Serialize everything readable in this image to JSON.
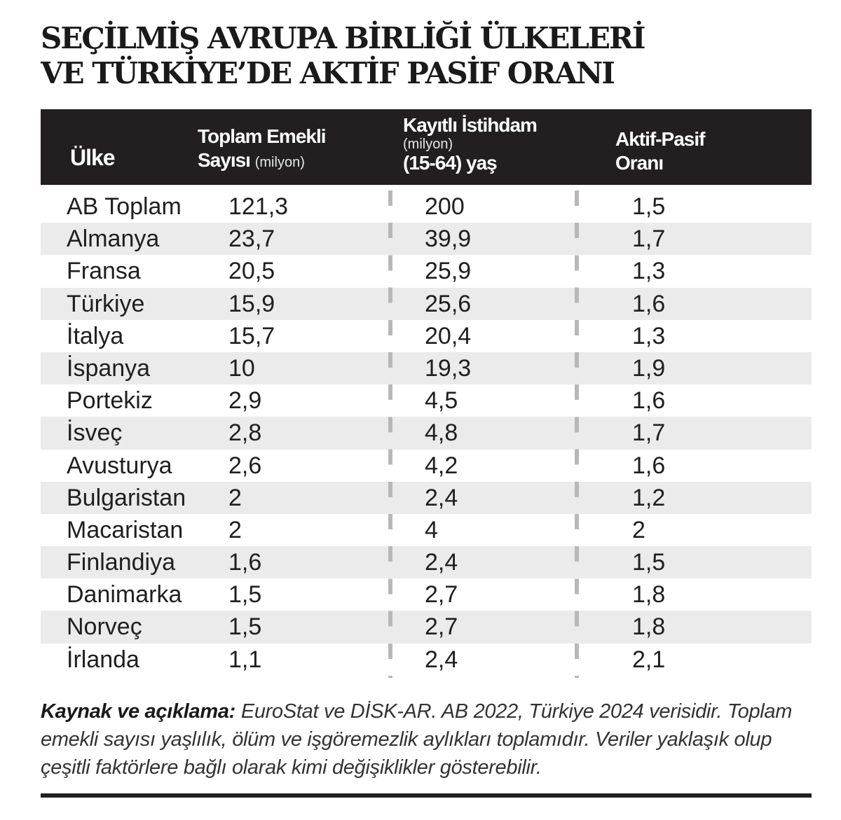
{
  "title": {
    "line1": "SEÇİLMİŞ AVRUPA BİRLİĞİ ÜLKELERİ",
    "line2": "VE TÜRKİYE’DE AKTİF PASİF ORANI"
  },
  "table": {
    "headers": {
      "country": "Ülke",
      "pension_line1": "Toplam Emekli",
      "pension_line2": "Sayısı",
      "pension_unit": "(milyon)",
      "employ_line1": "Kayıtlı İstihdam",
      "employ_unit": "(milyon)",
      "employ_line3": "(15-64) yaş",
      "ratio_line1": "Aktif-Pasif",
      "ratio_line2": "Oranı"
    },
    "rows": [
      {
        "country": "AB Toplam",
        "pension": "121,3",
        "employ": "200",
        "ratio": "1,5"
      },
      {
        "country": "Almanya",
        "pension": "23,7",
        "employ": "39,9",
        "ratio": "1,7"
      },
      {
        "country": "Fransa",
        "pension": "20,5",
        "employ": "25,9",
        "ratio": "1,3"
      },
      {
        "country": "Türkiye",
        "pension": "15,9",
        "employ": "25,6",
        "ratio": "1,6"
      },
      {
        "country": "İtalya",
        "pension": "15,7",
        "employ": "20,4",
        "ratio": "1,3"
      },
      {
        "country": "İspanya",
        "pension": "10",
        "employ": "19,3",
        "ratio": "1,9"
      },
      {
        "country": "Portekiz",
        "pension": "2,9",
        "employ": "4,5",
        "ratio": "1,6"
      },
      {
        "country": "İsveç",
        "pension": "2,8",
        "employ": "4,8",
        "ratio": "1,7"
      },
      {
        "country": "Avusturya",
        "pension": "2,6",
        "employ": "4,2",
        "ratio": "1,6"
      },
      {
        "country": "Bulgaristan",
        "pension": "2",
        "employ": "2,4",
        "ratio": "1,2"
      },
      {
        "country": "Macaristan",
        "pension": "2",
        "employ": "4",
        "ratio": "2"
      },
      {
        "country": "Finlandiya",
        "pension": "1,6",
        "employ": "2,4",
        "ratio": "1,5"
      },
      {
        "country": "Danimarka",
        "pension": "1,5",
        "employ": "2,7",
        "ratio": "1,8"
      },
      {
        "country": "Norveç",
        "pension": "1,5",
        "employ": "2,7",
        "ratio": "1,8"
      },
      {
        "country": "İrlanda",
        "pension": "1,1",
        "employ": "2,4",
        "ratio": "2,1"
      }
    ]
  },
  "source": {
    "label": "Kaynak ve açıklama:",
    "text": "EuroStat ve DİSK-AR. AB 2022, Türkiye 2024 verisidir. Toplam emekli sayısı yaşlılık, ölüm ve işgöremezlik aylıkları toplamıdır. Veriler yaklaşık olup çeşitli faktörlere bağlı olarak kimi değişiklikler gösterebilir."
  },
  "colors": {
    "header_bg": "#231f20",
    "row_shade": "#ebebeb",
    "divider": "#b8b8b8"
  }
}
